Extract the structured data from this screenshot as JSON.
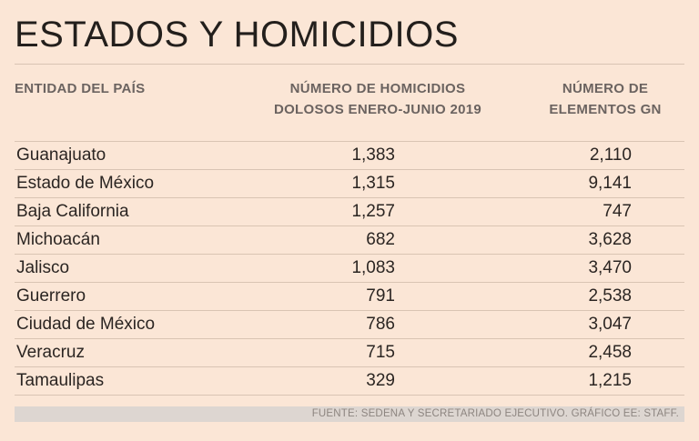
{
  "title": "ESTADOS Y HOMICIDIOS",
  "headers": {
    "entity": "ENTIDAD DEL PAÍS",
    "homicides_line1": "NÚMERO DE HOMICIDIOS",
    "homicides_line2": "DOLOSOS ENERO-JUNIO 2019",
    "gn_line1": "NÚMERO DE",
    "gn_line2": "ELEMENTOS GN"
  },
  "rows": [
    {
      "state": "Guanajuato",
      "homicides": "1,383",
      "gn": "2,110"
    },
    {
      "state": "Estado de México",
      "homicides": "1,315",
      "gn": "9,141"
    },
    {
      "state": "Baja California",
      "homicides": "1,257",
      "gn": "747"
    },
    {
      "state": "Michoacán",
      "homicides": "682",
      "gn": "3,628"
    },
    {
      "state": "Jalisco",
      "homicides": "1,083",
      "gn": "3,470"
    },
    {
      "state": "Guerrero",
      "homicides": "791",
      "gn": "2,538"
    },
    {
      "state": "Ciudad de México",
      "homicides": "786",
      "gn": "3,047"
    },
    {
      "state": "Veracruz",
      "homicides": "715",
      "gn": "2,458"
    },
    {
      "state": "Tamaulipas",
      "homicides": "329",
      "gn": "1,215"
    }
  ],
  "source": "FUENTE: SEDENA Y SECRETARIADO EJECUTIVO. GRÁFICO EE: STAFF."
}
